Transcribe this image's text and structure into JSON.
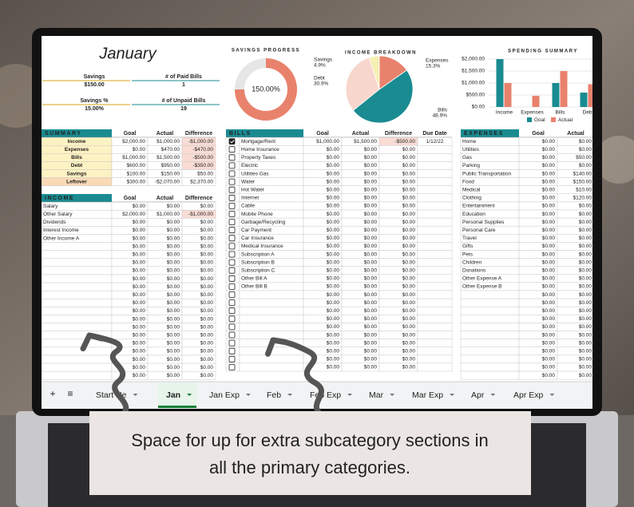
{
  "header": {
    "title": "January",
    "kpis": [
      {
        "label": "Savings",
        "value": "$150.00"
      },
      {
        "label": "# of Paid Bills",
        "value": "1"
      },
      {
        "label": "Savings %",
        "value": "15.00%"
      },
      {
        "label": "# of Unpaid Bills",
        "value": "19"
      }
    ]
  },
  "savings_progress": {
    "title": "SAVINGS PROGRESS",
    "value": 150,
    "value_label": "150.00%"
  },
  "income_breakdown": {
    "title": "INCOME BREAKDOWN",
    "categories": [
      "Expenses",
      "Bills",
      "Debt",
      "Savings"
    ],
    "values": [
      15.3,
      48.9,
      30.9,
      4.9
    ],
    "value_labels": [
      "15.3%",
      "48.9%",
      "30.9%",
      "4.9%"
    ],
    "colors": [
      "#e9826c",
      "#1a8b91",
      "#f7d6cd",
      "#f6efb4"
    ]
  },
  "spending_summary": {
    "title": "SPENDING SUMMARY",
    "categories": [
      "Income",
      "Expenses",
      "Bills",
      "Debt"
    ],
    "series": [
      {
        "name": "Goal",
        "color": "#1a8b91",
        "values": [
          2000,
          0,
          1000,
          600
        ]
      },
      {
        "name": "Actual",
        "color": "#e9826c",
        "values": [
          1000,
          470,
          1500,
          950
        ]
      }
    ],
    "ylim": [
      0,
      2000
    ],
    "yticks": [
      {
        "value": 0,
        "label": "$0.00"
      },
      {
        "value": 500,
        "label": "$500.00"
      },
      {
        "value": 1000,
        "label": "$1,000.00"
      },
      {
        "value": 1500,
        "label": "$1,500.00"
      },
      {
        "value": 2000,
        "label": "$2,000.00"
      }
    ]
  },
  "summary": {
    "title": "SUMMARY",
    "columns": [
      "Goal",
      "Actual",
      "Difference"
    ],
    "rows": [
      {
        "name": "Income",
        "goal": "$2,000.00",
        "actual": "$1,000.00",
        "difference": "-$1,000.00"
      },
      {
        "name": "Expenses",
        "goal": "$0.00",
        "actual": "$470.00",
        "difference": "-$470.00"
      },
      {
        "name": "Bills",
        "goal": "$1,000.00",
        "actual": "$1,500.00",
        "difference": "-$500.00"
      },
      {
        "name": "Debt",
        "goal": "$600.00",
        "actual": "$950.00",
        "difference": "-$350.00"
      },
      {
        "name": "Savings",
        "goal": "$100.00",
        "actual": "$150.00",
        "difference": "$50.00"
      },
      {
        "name": "Leftover",
        "goal": "$300.00",
        "actual": "-$2,070.00",
        "difference": "$2,370.00"
      }
    ]
  },
  "income": {
    "title": "INCOME",
    "columns": [
      "Goal",
      "Actual",
      "Difference"
    ],
    "rows": [
      {
        "name": "Salary",
        "goal": "$0.00",
        "actual": "$0.00",
        "difference": "$0.00"
      },
      {
        "name": "Other Salary",
        "goal": "$2,000.00",
        "actual": "$1,000.00",
        "difference": "-$1,000.00"
      },
      {
        "name": "Dividends",
        "goal": "$0.00",
        "actual": "$0.00",
        "difference": "$0.00"
      },
      {
        "name": "Interest Income",
        "goal": "$0.00",
        "actual": "$0.00",
        "difference": "$0.00"
      },
      {
        "name": "Other Income A",
        "goal": "$0.00",
        "actual": "$0.00",
        "difference": "$0.00"
      },
      {
        "goal": "$0.00",
        "actual": "$0.00",
        "difference": "$0.00"
      },
      {
        "goal": "$0.00",
        "actual": "$0.00",
        "difference": "$0.00"
      },
      {
        "goal": "$0.00",
        "actual": "$0.00",
        "difference": "$0.00"
      },
      {
        "goal": "$0.00",
        "actual": "$0.00",
        "difference": "$0.00"
      },
      {
        "goal": "$0.00",
        "actual": "$0.00",
        "difference": "$0.00"
      },
      {
        "goal": "$0.00",
        "actual": "$0.00",
        "difference": "$0.00"
      },
      {
        "goal": "$0.00",
        "actual": "$0.00",
        "difference": "$0.00"
      },
      {
        "goal": "$0.00",
        "actual": "$0.00",
        "difference": "$0.00"
      },
      {
        "goal": "$0.00",
        "actual": "$0.00",
        "difference": "$0.00"
      },
      {
        "goal": "$0.00",
        "actual": "$0.00",
        "difference": "$0.00"
      },
      {
        "goal": "$0.00",
        "actual": "$0.00",
        "difference": "$0.00"
      },
      {
        "goal": "$0.00",
        "actual": "$0.00",
        "difference": "$0.00"
      },
      {
        "goal": "$0.00",
        "actual": "$0.00",
        "difference": "$0.00"
      },
      {
        "goal": "$0.00",
        "actual": "$0.00",
        "difference": "$0.00"
      },
      {
        "goal": "$0.00",
        "actual": "$0.00",
        "difference": "$0.00"
      },
      {
        "goal": "$0.00",
        "actual": "$0.00",
        "difference": "$0.00"
      },
      {
        "goal": "$0.00",
        "actual": "$0.00",
        "difference": "$0.00"
      }
    ]
  },
  "bills": {
    "title": "BILLS",
    "columns": [
      "Goal",
      "Actual",
      "Difference",
      "Due Date"
    ],
    "rows": [
      {
        "checked": true,
        "name": "Mortgage/Rent",
        "goal": "$1,000.00",
        "actual": "$1,500.00",
        "difference": "-$500.00",
        "due": "1/12/22"
      },
      {
        "checked": false,
        "name": "Home Insurance",
        "goal": "$0.00",
        "actual": "$0.00",
        "difference": "$0.00"
      },
      {
        "checked": false,
        "name": "Property Taxes",
        "goal": "$0.00",
        "actual": "$0.00",
        "difference": "$0.00"
      },
      {
        "checked": false,
        "name": "Electric",
        "goal": "$0.00",
        "actual": "$0.00",
        "difference": "$0.00"
      },
      {
        "checked": false,
        "name": "Utilities Gas",
        "goal": "$0.00",
        "actual": "$0.00",
        "difference": "$0.00"
      },
      {
        "checked": false,
        "name": "Water",
        "goal": "$0.00",
        "actual": "$0.00",
        "difference": "$0.00"
      },
      {
        "checked": false,
        "name": "Hot Water",
        "goal": "$0.00",
        "actual": "$0.00",
        "difference": "$0.00"
      },
      {
        "checked": false,
        "name": "Internet",
        "goal": "$0.00",
        "actual": "$0.00",
        "difference": "$0.00"
      },
      {
        "checked": false,
        "name": "Cable",
        "goal": "$0.00",
        "actual": "$0.00",
        "difference": "$0.00"
      },
      {
        "checked": false,
        "name": "Mobile Phone",
        "goal": "$0.00",
        "actual": "$0.00",
        "difference": "$0.00"
      },
      {
        "checked": false,
        "name": "Garbage/Recycling",
        "goal": "$0.00",
        "actual": "$0.00",
        "difference": "$0.00"
      },
      {
        "checked": false,
        "name": "Car Payment",
        "goal": "$0.00",
        "actual": "$0.00",
        "difference": "$0.00"
      },
      {
        "checked": false,
        "name": "Car Insurance",
        "goal": "$0.00",
        "actual": "$0.00",
        "difference": "$0.00"
      },
      {
        "checked": false,
        "name": "Medical Insurance",
        "goal": "$0.00",
        "actual": "$0.00",
        "difference": "$0.00"
      },
      {
        "checked": false,
        "name": "Subscription A",
        "goal": "$0.00",
        "actual": "$0.00",
        "difference": "$0.00"
      },
      {
        "checked": false,
        "name": "Subscription B",
        "goal": "$0.00",
        "actual": "$0.00",
        "difference": "$0.00"
      },
      {
        "checked": false,
        "name": "Subscription C",
        "goal": "$0.00",
        "actual": "$0.00",
        "difference": "$0.00"
      },
      {
        "checked": false,
        "name": "Other Bill A",
        "goal": "$0.00",
        "actual": "$0.00",
        "difference": "$0.00"
      },
      {
        "checked": false,
        "name": "Other Bill B",
        "goal": "$0.00",
        "actual": "$0.00",
        "difference": "$0.00"
      },
      {
        "checked": false,
        "goal": "$0.00",
        "actual": "$0.00",
        "difference": "$0.00"
      },
      {
        "checked": false,
        "goal": "$0.00",
        "actual": "$0.00",
        "difference": "$0.00"
      },
      {
        "checked": false,
        "goal": "$0.00",
        "actual": "$0.00",
        "difference": "$0.00"
      },
      {
        "checked": false,
        "goal": "$0.00",
        "actual": "$0.00",
        "difference": "$0.00"
      },
      {
        "checked": false,
        "goal": "$0.00",
        "actual": "$0.00",
        "difference": "$0.00"
      },
      {
        "checked": false,
        "goal": "$0.00",
        "actual": "$0.00",
        "difference": "$0.00"
      },
      {
        "checked": false,
        "goal": "$0.00",
        "actual": "$0.00",
        "difference": "$0.00"
      },
      {
        "checked": false,
        "goal": "$0.00",
        "actual": "$0.00",
        "difference": "$0.00"
      },
      {
        "checked": false,
        "goal": "$0.00",
        "actual": "$0.00",
        "difference": "$0.00"
      },
      {
        "checked": false,
        "goal": "$0.00",
        "actual": "$0.00",
        "difference": "$0.00"
      }
    ]
  },
  "expenses": {
    "title": "EXPENSES",
    "columns": [
      "Goal",
      "Actual"
    ],
    "rows": [
      {
        "name": "Home",
        "goal": "$0.00",
        "actual": "$0.00"
      },
      {
        "name": "Utilities",
        "goal": "$0.00",
        "actual": "$0.00"
      },
      {
        "name": "Gas",
        "goal": "$0.00",
        "actual": "$50.00"
      },
      {
        "name": "Parking",
        "goal": "$0.00",
        "actual": "$0.00"
      },
      {
        "name": "Public Transportation",
        "goal": "$0.00",
        "actual": "$140.00"
      },
      {
        "name": "Food",
        "goal": "$0.00",
        "actual": "$150.00"
      },
      {
        "name": "Medical",
        "goal": "$0.00",
        "actual": "$10.00"
      },
      {
        "name": "Clothing",
        "goal": "$0.00",
        "actual": "$120.00"
      },
      {
        "name": "Entertainment",
        "goal": "$0.00",
        "actual": "$0.00"
      },
      {
        "name": "Education",
        "goal": "$0.00",
        "actual": "$0.00"
      },
      {
        "name": "Personal Supplies",
        "goal": "$0.00",
        "actual": "$0.00"
      },
      {
        "name": "Personal Care",
        "goal": "$0.00",
        "actual": "$0.00"
      },
      {
        "name": "Travel",
        "goal": "$0.00",
        "actual": "$0.00"
      },
      {
        "name": "Gifts",
        "goal": "$0.00",
        "actual": "$0.00"
      },
      {
        "name": "Pets",
        "goal": "$0.00",
        "actual": "$0.00"
      },
      {
        "name": "Children",
        "goal": "$0.00",
        "actual": "$0.00"
      },
      {
        "name": "Donations",
        "goal": "$0.00",
        "actual": "$0.00"
      },
      {
        "name": "Other Expense A",
        "goal": "$0.00",
        "actual": "$0.00"
      },
      {
        "name": "Other Expense B",
        "goal": "$0.00",
        "actual": "$0.00"
      },
      {
        "goal": "$0.00",
        "actual": "$0.00"
      },
      {
        "goal": "$0.00",
        "actual": "$0.00"
      },
      {
        "goal": "$0.00",
        "actual": "$0.00"
      },
      {
        "goal": "$0.00",
        "actual": "$0.00"
      },
      {
        "goal": "$0.00",
        "actual": "$0.00"
      },
      {
        "goal": "$0.00",
        "actual": "$0.00"
      },
      {
        "goal": "$0.00",
        "actual": "$0.00"
      },
      {
        "goal": "$0.00",
        "actual": "$0.00"
      },
      {
        "goal": "$0.00",
        "actual": "$0.00"
      },
      {
        "goal": "$0.00",
        "actual": "$0.00"
      },
      {
        "goal": "$0.00",
        "actual": "$0.00"
      }
    ]
  },
  "tabs": {
    "buttons": [
      "+",
      "≡"
    ],
    "sheets": [
      "Start He",
      "Jan",
      "Jan Exp",
      "Feb",
      "Feb Exp",
      "Mar",
      "Mar Exp",
      "Apr",
      "Apr Exp"
    ],
    "active": 1
  },
  "caption": {
    "lines": [
      "Space for up for extra subcategory sections in",
      "all the primary categories."
    ]
  }
}
